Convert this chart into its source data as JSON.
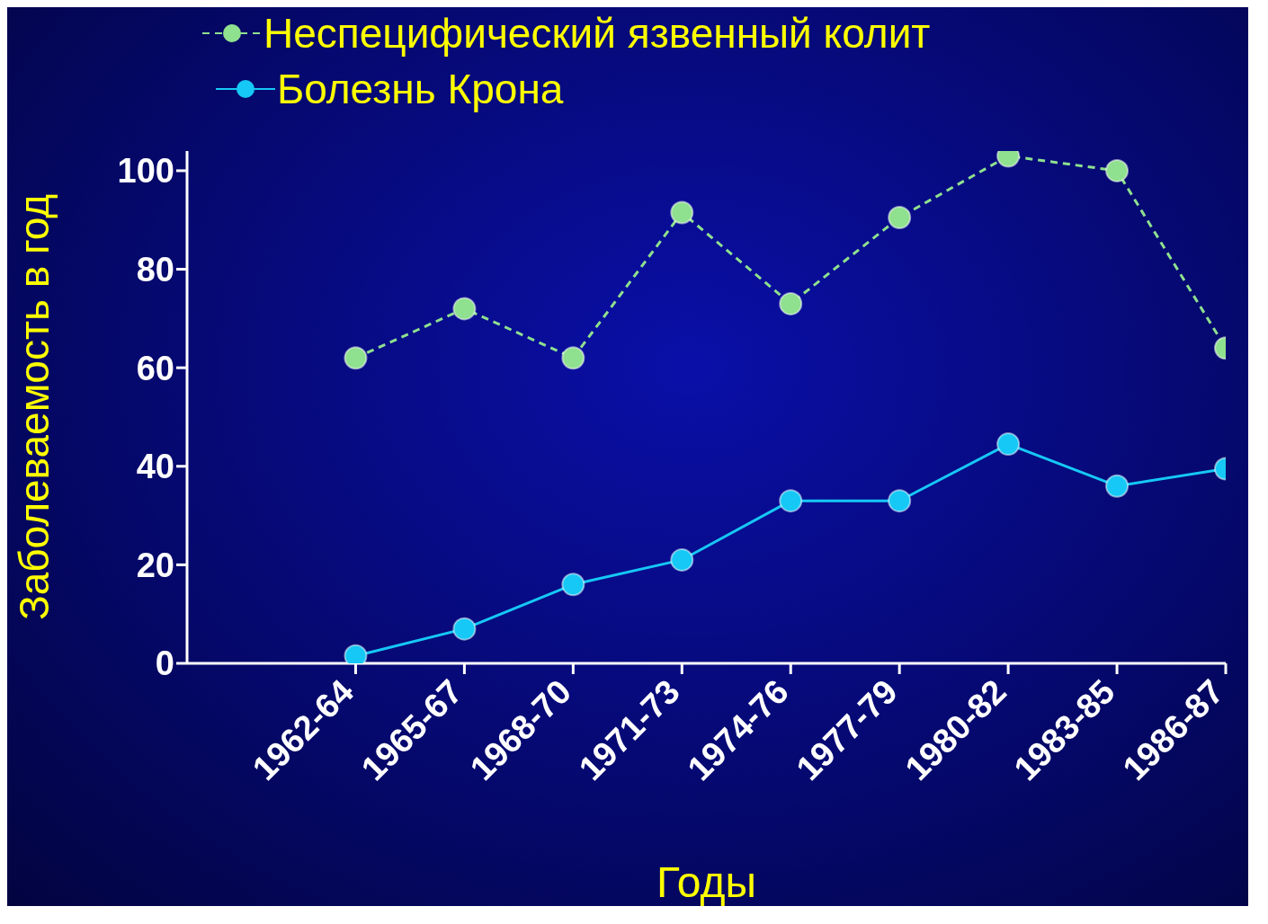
{
  "chart_data": {
    "type": "line",
    "xlabel": "Годы",
    "ylabel": "Заболеваемость в год",
    "categories": [
      "1962-64",
      "1965-67",
      "1968-70",
      "1971-73",
      "1974-76",
      "1977-79",
      "1980-82",
      "1983-85",
      "1986-87"
    ],
    "series": [
      {
        "name": "Неспецифический язвенный колит",
        "color": "#8fe08f",
        "line_style": "dashed",
        "values": [
          62,
          72,
          62,
          91.5,
          73,
          90.5,
          103,
          100,
          64
        ]
      },
      {
        "name": "Болезнь Крона",
        "color": "#16c8f5",
        "line_style": "solid",
        "values": [
          1.5,
          7,
          16,
          21,
          33,
          33,
          44.5,
          36,
          39.5
        ]
      }
    ],
    "ylim": [
      0,
      104
    ],
    "yticks": [
      0,
      20,
      40,
      60,
      80,
      100
    ],
    "grid": false,
    "legend": "top left",
    "marker": "circle"
  }
}
